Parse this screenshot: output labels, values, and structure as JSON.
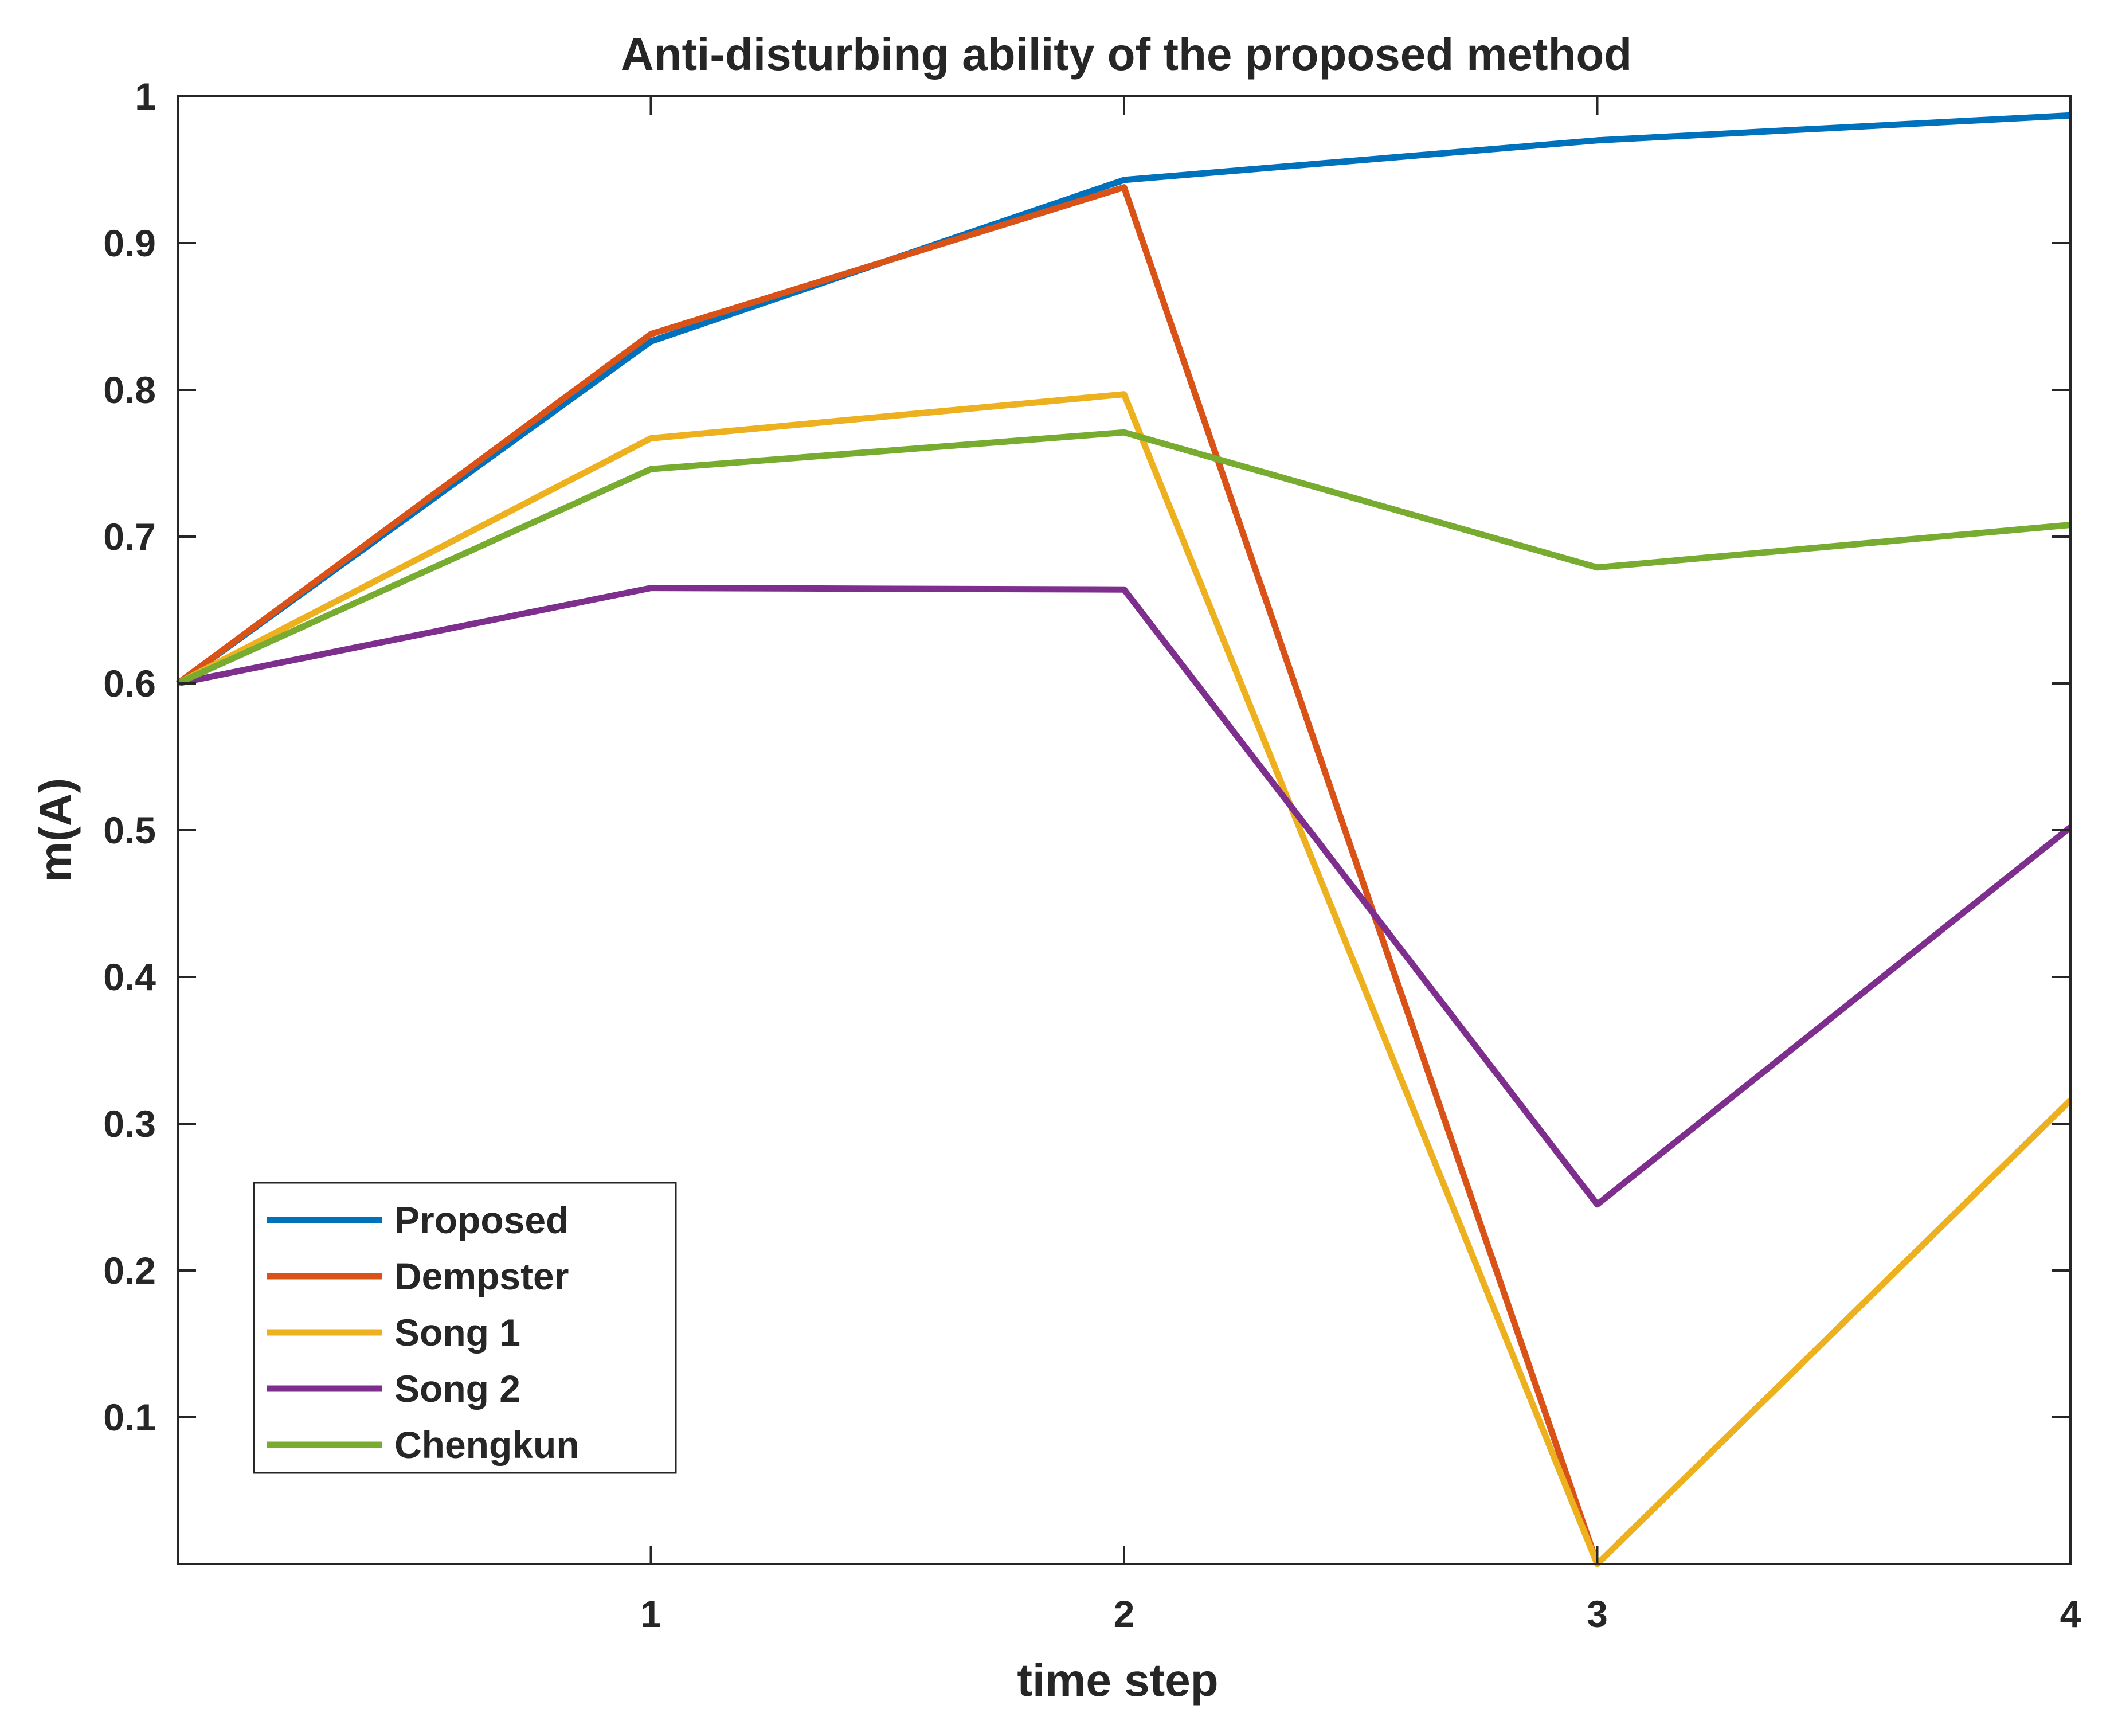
{
  "chart_data": {
    "type": "line",
    "title": "Anti-disturbing ability of the proposed method",
    "xlabel": "time step",
    "ylabel": "m(A)",
    "xlim": [
      0,
      4
    ],
    "ylim": [
      0,
      1
    ],
    "x": [
      0,
      1,
      2,
      3,
      4
    ],
    "x_tick_labels": [
      "1",
      "2",
      "3",
      "4"
    ],
    "x_tick_values": [
      1,
      2,
      3,
      4
    ],
    "y_tick_labels": [
      "0.1",
      "0.2",
      "0.3",
      "0.4",
      "0.5",
      "0.6",
      "0.7",
      "0.8",
      "0.9",
      "1"
    ],
    "y_tick_values": [
      0.1,
      0.2,
      0.3,
      0.4,
      0.5,
      0.6,
      0.7,
      0.8,
      0.9,
      1.0
    ],
    "grid": false,
    "legend_position": "bottom-left",
    "series": [
      {
        "name": "Proposed",
        "color": "#0072BD",
        "values": [
          0.6,
          0.833,
          0.943,
          0.97,
          0.987
        ]
      },
      {
        "name": "Dempster",
        "color": "#D95319",
        "values": [
          0.6,
          0.838,
          0.938,
          0.0,
          null
        ]
      },
      {
        "name": "Song 1",
        "color": "#EDB120",
        "values": [
          0.6,
          0.767,
          0.797,
          0.0,
          0.316
        ]
      },
      {
        "name": "Song 2",
        "color": "#7E2F8E",
        "values": [
          0.6,
          0.665,
          0.664,
          0.245,
          0.502
        ]
      },
      {
        "name": "Chengkun",
        "color": "#77AC30",
        "values": [
          0.6,
          0.746,
          0.771,
          0.679,
          0.708
        ]
      }
    ]
  }
}
